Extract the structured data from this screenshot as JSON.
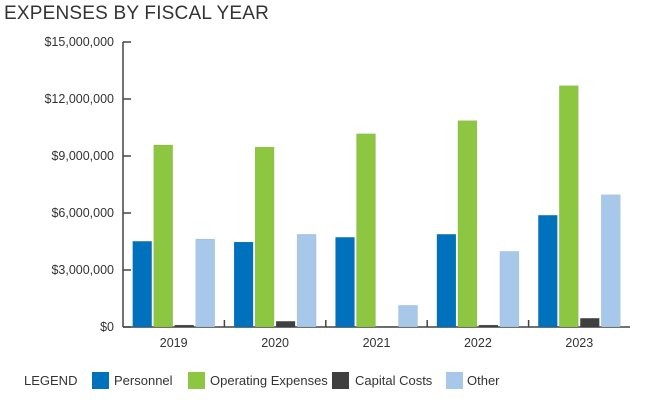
{
  "chart_data": {
    "type": "bar",
    "title": "EXPENSES BY FISCAL YEAR",
    "categories": [
      "2019",
      "2020",
      "2021",
      "2022",
      "2023"
    ],
    "ylim": [
      0,
      15000000
    ],
    "yticks": [
      0,
      3000000,
      6000000,
      9000000,
      12000000,
      15000000
    ],
    "ytick_labels": [
      "$0",
      "$3,000,000",
      "$6,000,000",
      "$9,000,000",
      "$12,000,000",
      "$15,000,000"
    ],
    "grid": false,
    "legend_placement": "bottom",
    "legend_title": "LEGEND",
    "series": [
      {
        "name": "Personnel",
        "color": "#0071bc",
        "values": [
          4510000,
          4470000,
          4720000,
          4880000,
          5880000
        ]
      },
      {
        "name": "Operating Expenses",
        "color": "#8dc641",
        "values": [
          9580000,
          9470000,
          10170000,
          10860000,
          12700000
        ]
      },
      {
        "name": "Capital Costs",
        "color": "#404040",
        "values": [
          100000,
          300000,
          20000,
          100000,
          460000
        ]
      },
      {
        "name": "Other",
        "color": "#a8c8ea",
        "values": [
          4630000,
          4880000,
          1140000,
          3980000,
          6960000
        ]
      }
    ]
  }
}
